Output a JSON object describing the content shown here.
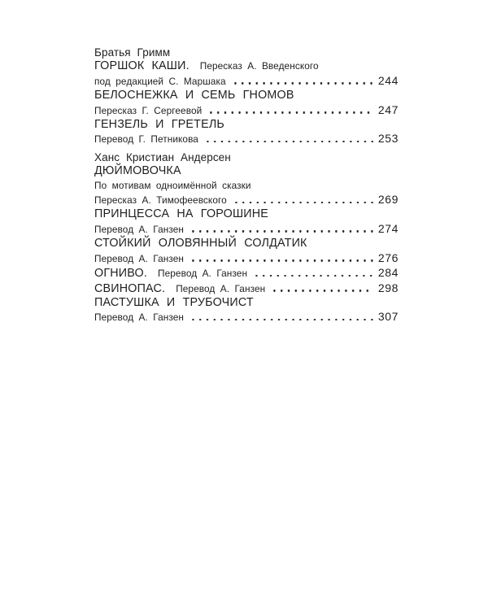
{
  "page": {
    "background": "#ffffff",
    "text_color": "#1e1e1e",
    "dot_color": "#222222"
  },
  "toc": {
    "lines": [
      {
        "kind": "author",
        "text": "Братья Гримм",
        "gap_before": false
      },
      {
        "kind": "entry",
        "title": "ГОРШОК КАШИ.",
        "detail": "Пересказ А. Введенского",
        "dots": false,
        "page": ""
      },
      {
        "kind": "entry",
        "title": "",
        "detail": "под редакцией С. Маршака",
        "dots": true,
        "page": "244"
      },
      {
        "kind": "entry",
        "title": "БЕЛОСНЕЖКА И СЕМЬ ГНОМОВ",
        "detail": "",
        "dots": false,
        "page": ""
      },
      {
        "kind": "entry",
        "title": "",
        "detail": "Пересказ Г. Сергеевой",
        "dots": true,
        "page": "247"
      },
      {
        "kind": "entry",
        "title": "ГЕНЗЕЛЬ И ГРЕТЕЛЬ",
        "detail": "",
        "dots": false,
        "page": ""
      },
      {
        "kind": "entry",
        "title": "",
        "detail": "Перевод Г. Петникова",
        "dots": true,
        "page": "253"
      },
      {
        "kind": "author",
        "text": "Ханс Кристиан Андерсен",
        "gap_before": true
      },
      {
        "kind": "entry",
        "title": "ДЮЙМОВОЧКА",
        "detail": "",
        "dots": false,
        "page": ""
      },
      {
        "kind": "entry",
        "title": "",
        "detail": "По мотивам одноимённой сказки",
        "dots": false,
        "page": ""
      },
      {
        "kind": "entry",
        "title": "",
        "detail": "Пересказ А. Тимофеевского",
        "dots": true,
        "page": "269"
      },
      {
        "kind": "entry",
        "title": "ПРИНЦЕССА НА ГОРОШИНЕ",
        "detail": "",
        "dots": false,
        "page": ""
      },
      {
        "kind": "entry",
        "title": "",
        "detail": "Перевод А. Ганзен",
        "dots": true,
        "page": "274"
      },
      {
        "kind": "entry",
        "title": "СТОЙКИЙ ОЛОВЯННЫЙ СОЛДАТИК",
        "detail": "",
        "dots": false,
        "page": ""
      },
      {
        "kind": "entry",
        "title": "",
        "detail": "Перевод А. Ганзен",
        "dots": true,
        "page": "276"
      },
      {
        "kind": "entry",
        "title": "ОГНИВО.",
        "detail": "Перевод А. Ганзен",
        "dots": true,
        "page": "284"
      },
      {
        "kind": "entry",
        "title": "СВИНОПАС.",
        "detail": "Перевод А. Ганзен",
        "dots": true,
        "page": "298"
      },
      {
        "kind": "entry",
        "title": "ПАСТУШКА И ТРУБОЧИСТ",
        "detail": "",
        "dots": false,
        "page": ""
      },
      {
        "kind": "entry",
        "title": "",
        "detail": "Перевод А. Ганзен",
        "dots": true,
        "page": "307"
      }
    ]
  }
}
